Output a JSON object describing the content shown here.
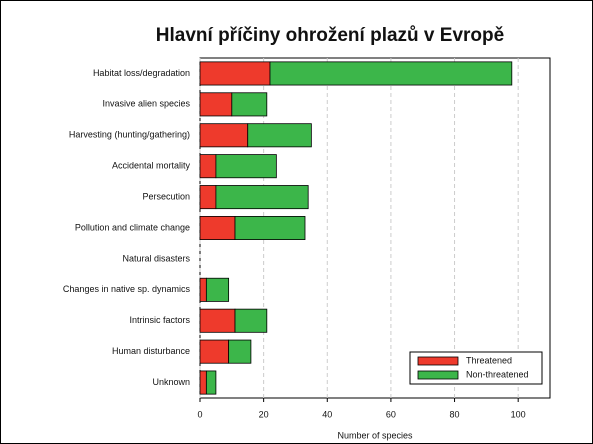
{
  "chart_data": {
    "type": "barh_stacked",
    "title": "Hlavní příčiny ohrožení plazů v Evropě",
    "xlabel": "Number of species",
    "categories": [
      "Habitat loss/degradation",
      "Invasive alien species",
      "Harvesting (hunting/gathering)",
      "Accidental mortality",
      "Persecution",
      "Pollution and climate change",
      "Natural disasters",
      "Changes in native sp. dynamics",
      "Intrinsic factors",
      "Human disturbance",
      "Unknown"
    ],
    "series": [
      {
        "name": "Threatened",
        "color": "#ee3a2c",
        "values": [
          22,
          10,
          15,
          5,
          5,
          11,
          0,
          2,
          11,
          9,
          2
        ]
      },
      {
        "name": "Non-threatened",
        "color": "#3cb64a",
        "values": [
          76,
          11,
          20,
          19,
          29,
          22,
          0,
          7,
          10,
          7,
          3
        ]
      }
    ],
    "xlim": [
      0,
      110
    ],
    "xticks": [
      0,
      20,
      40,
      60,
      80,
      100
    ],
    "grid": true,
    "legend": "lower right"
  }
}
